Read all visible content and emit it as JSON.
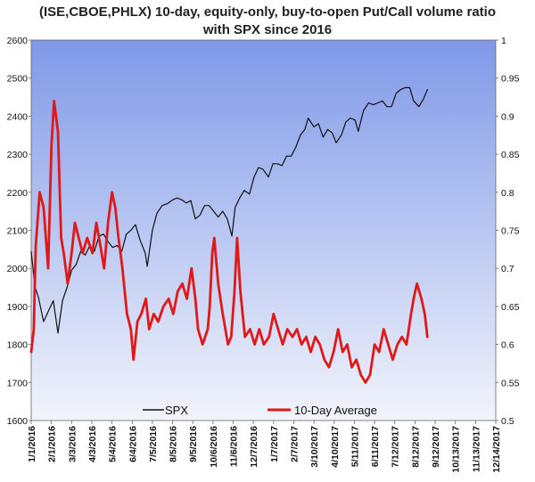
{
  "chart_data": {
    "type": "line",
    "title_lines": [
      "(ISE,CBOE,PHLX) 10-day, equity-only, buy-to-open Put/Call volume ratio",
      "with SPX since 2016"
    ],
    "x_range": [
      "1/1/2016",
      "12/14/2017"
    ],
    "x_ticks": [
      "1/1/2016",
      "2/1/2016",
      "3/3/2016",
      "4/3/2016",
      "5/4/2016",
      "6/4/2016",
      "7/5/2016",
      "8/5/2016",
      "9/5/2016",
      "10/6/2016",
      "11/6/2016",
      "12/7/2016",
      "1/7/2017",
      "2/7/2017",
      "3/10/2017",
      "4/10/2017",
      "5/11/2017",
      "6/11/2017",
      "7/12/2017",
      "8/12/2017",
      "9/12/2017",
      "10/13/2017",
      "11/13/2017",
      "12/14/2017"
    ],
    "y_left": {
      "min": 1600,
      "max": 2600,
      "ticks": [
        "1600",
        "1700",
        "1800",
        "1900",
        "2000",
        "2100",
        "2200",
        "2300",
        "2400",
        "2500",
        "2600"
      ]
    },
    "y_right": {
      "min": 0.5,
      "max": 1.0,
      "ticks": [
        "0.5",
        "0.55",
        "0.6",
        "0.65",
        "0.7",
        "0.75",
        "0.8",
        "0.85",
        "0.9",
        "0.95",
        "1"
      ]
    },
    "colors": {
      "spx": "#111111",
      "avg": "#e01818",
      "bg_top": "#7f99e8",
      "bg_bottom": "#f2f4fb"
    },
    "legend": {
      "position": "bottom-center",
      "entries": [
        "SPX",
        "10-Day Average"
      ]
    },
    "series": [
      {
        "name": "SPX",
        "axis": "left",
        "x": [
          "2016-01-01",
          "2016-01-07",
          "2016-01-12",
          "2016-01-20",
          "2016-01-28",
          "2016-02-04",
          "2016-02-11",
          "2016-02-18",
          "2016-02-25",
          "2016-03-03",
          "2016-03-10",
          "2016-03-17",
          "2016-03-24",
          "2016-03-31",
          "2016-04-07",
          "2016-04-14",
          "2016-04-21",
          "2016-04-28",
          "2016-05-05",
          "2016-05-12",
          "2016-05-19",
          "2016-05-26",
          "2016-06-02",
          "2016-06-09",
          "2016-06-16",
          "2016-06-24",
          "2016-06-27",
          "2016-07-05",
          "2016-07-12",
          "2016-07-20",
          "2016-07-28",
          "2016-08-05",
          "2016-08-12",
          "2016-08-19",
          "2016-08-26",
          "2016-09-02",
          "2016-09-09",
          "2016-09-16",
          "2016-09-23",
          "2016-09-30",
          "2016-10-07",
          "2016-10-14",
          "2016-10-21",
          "2016-10-28",
          "2016-11-04",
          "2016-11-09",
          "2016-11-16",
          "2016-11-23",
          "2016-12-01",
          "2016-12-08",
          "2016-12-15",
          "2016-12-22",
          "2016-12-30",
          "2017-01-06",
          "2017-01-13",
          "2017-01-20",
          "2017-01-27",
          "2017-02-03",
          "2017-02-10",
          "2017-02-17",
          "2017-02-24",
          "2017-03-01",
          "2017-03-10",
          "2017-03-17",
          "2017-03-24",
          "2017-03-31",
          "2017-04-07",
          "2017-04-13",
          "2017-04-21",
          "2017-04-28",
          "2017-05-05",
          "2017-05-12",
          "2017-05-17",
          "2017-05-25",
          "2017-06-02",
          "2017-06-09",
          "2017-06-16",
          "2017-06-23",
          "2017-06-30",
          "2017-07-07",
          "2017-07-14",
          "2017-07-21",
          "2017-07-28",
          "2017-08-04",
          "2017-08-10",
          "2017-08-18",
          "2017-08-25",
          "2017-08-31"
        ],
        "values": [
          2044,
          1950,
          1925,
          1860,
          1890,
          1915,
          1830,
          1915,
          1950,
          1995,
          2010,
          2045,
          2035,
          2060,
          2045,
          2085,
          2090,
          2070,
          2055,
          2060,
          2045,
          2090,
          2100,
          2115,
          2075,
          2040,
          2005,
          2100,
          2145,
          2165,
          2170,
          2180,
          2185,
          2180,
          2172,
          2178,
          2130,
          2140,
          2165,
          2165,
          2150,
          2135,
          2150,
          2130,
          2085,
          2160,
          2185,
          2205,
          2195,
          2240,
          2265,
          2260,
          2240,
          2275,
          2275,
          2270,
          2295,
          2295,
          2318,
          2350,
          2365,
          2395,
          2372,
          2380,
          2345,
          2365,
          2356,
          2330,
          2350,
          2385,
          2395,
          2390,
          2360,
          2415,
          2435,
          2430,
          2435,
          2440,
          2425,
          2425,
          2460,
          2470,
          2475,
          2475,
          2440,
          2425,
          2445,
          2470
        ]
      },
      {
        "name": "10-Day Average",
        "axis": "right",
        "x": [
          "2016-01-01",
          "2016-01-05",
          "2016-01-08",
          "2016-01-14",
          "2016-01-20",
          "2016-01-27",
          "2016-02-01",
          "2016-02-05",
          "2016-02-11",
          "2016-02-16",
          "2016-02-20",
          "2016-02-26",
          "2016-03-03",
          "2016-03-08",
          "2016-03-14",
          "2016-03-20",
          "2016-03-27",
          "2016-04-04",
          "2016-04-10",
          "2016-04-16",
          "2016-04-22",
          "2016-04-28",
          "2016-05-04",
          "2016-05-09",
          "2016-05-14",
          "2016-05-20",
          "2016-05-27",
          "2016-06-02",
          "2016-06-06",
          "2016-06-12",
          "2016-06-18",
          "2016-06-25",
          "2016-06-30",
          "2016-07-07",
          "2016-07-14",
          "2016-07-22",
          "2016-07-30",
          "2016-08-06",
          "2016-08-13",
          "2016-08-20",
          "2016-08-27",
          "2016-09-03",
          "2016-09-09",
          "2016-09-13",
          "2016-09-20",
          "2016-09-28",
          "2016-10-01",
          "2016-10-05",
          "2016-10-08",
          "2016-10-14",
          "2016-10-21",
          "2016-10-29",
          "2016-11-03",
          "2016-11-08",
          "2016-11-12",
          "2016-11-17",
          "2016-11-24",
          "2016-12-02",
          "2016-12-09",
          "2016-12-16",
          "2016-12-23",
          "2016-12-31",
          "2017-01-07",
          "2017-01-14",
          "2017-01-21",
          "2017-01-28",
          "2017-02-05",
          "2017-02-12",
          "2017-02-19",
          "2017-02-26",
          "2017-03-05",
          "2017-03-12",
          "2017-03-19",
          "2017-03-26",
          "2017-04-02",
          "2017-04-09",
          "2017-04-16",
          "2017-04-23",
          "2017-04-30",
          "2017-05-07",
          "2017-05-14",
          "2017-05-21",
          "2017-05-28",
          "2017-06-04",
          "2017-06-11",
          "2017-06-18",
          "2017-06-25",
          "2017-07-02",
          "2017-07-09",
          "2017-07-16",
          "2017-07-23",
          "2017-07-30",
          "2017-08-06",
          "2017-08-10",
          "2017-08-15",
          "2017-08-22",
          "2017-08-27",
          "2017-08-31"
        ],
        "values": [
          0.59,
          0.62,
          0.73,
          0.8,
          0.78,
          0.7,
          0.86,
          0.92,
          0.88,
          0.74,
          0.72,
          0.68,
          0.72,
          0.76,
          0.74,
          0.72,
          0.74,
          0.72,
          0.76,
          0.73,
          0.7,
          0.76,
          0.8,
          0.78,
          0.74,
          0.7,
          0.64,
          0.62,
          0.58,
          0.63,
          0.64,
          0.66,
          0.62,
          0.64,
          0.63,
          0.65,
          0.66,
          0.64,
          0.67,
          0.68,
          0.66,
          0.7,
          0.66,
          0.62,
          0.6,
          0.62,
          0.65,
          0.72,
          0.74,
          0.68,
          0.64,
          0.6,
          0.61,
          0.67,
          0.74,
          0.67,
          0.61,
          0.62,
          0.6,
          0.62,
          0.6,
          0.61,
          0.64,
          0.62,
          0.6,
          0.62,
          0.61,
          0.62,
          0.6,
          0.61,
          0.59,
          0.61,
          0.6,
          0.58,
          0.57,
          0.59,
          0.62,
          0.59,
          0.6,
          0.57,
          0.58,
          0.56,
          0.55,
          0.56,
          0.6,
          0.59,
          0.62,
          0.6,
          0.58,
          0.6,
          0.61,
          0.6,
          0.64,
          0.66,
          0.68,
          0.66,
          0.64,
          0.61
        ]
      }
    ]
  }
}
